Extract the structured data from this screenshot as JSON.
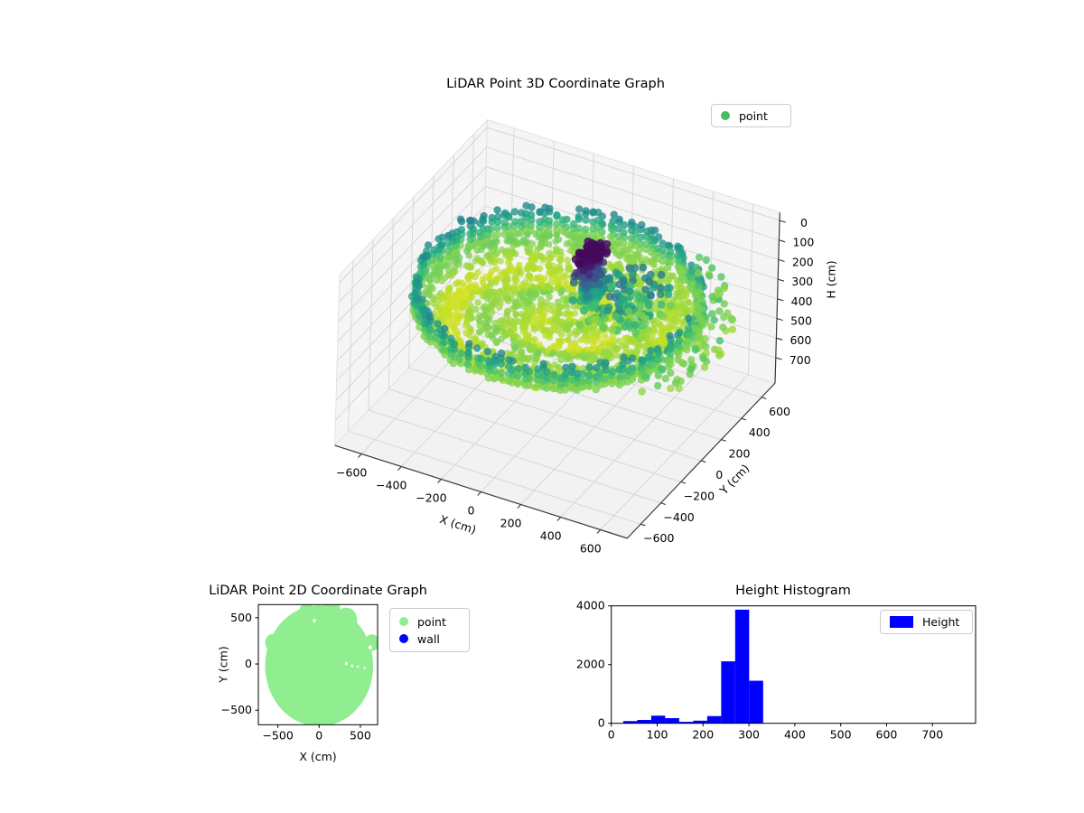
{
  "figure": {
    "background": "#ffffff"
  },
  "chart_data": [
    {
      "type": "scatter3d",
      "title": "LiDAR Point 3D Coordinate Graph",
      "xlabel": "X (cm)",
      "ylabel": "Y (cm)",
      "zlabel": "H (cm)",
      "legend": {
        "position": "upper right",
        "entries": [
          {
            "label": "point",
            "color": "#4abd62"
          }
        ]
      },
      "xticks": [
        -600,
        -400,
        -200,
        0,
        200,
        400,
        600
      ],
      "yticks": [
        -600,
        -400,
        -200,
        0,
        200,
        400,
        600
      ],
      "zticks": [
        0,
        100,
        200,
        300,
        400,
        500,
        600,
        700
      ],
      "xlim": [
        -734,
        734
      ],
      "ylim": [
        -734,
        734
      ],
      "zlim": [
        -40,
        830
      ],
      "zaxis_inverted": true,
      "colormap": "viridis",
      "color_by": "height_cm",
      "color_norm": [
        0,
        368
      ],
      "pane_color": "#f5f5f5",
      "grid_color": "#d7d7d7",
      "point_cloud": {
        "seed": 77,
        "floor_disk": {
          "center_xy": [
            0,
            0
          ],
          "radius": 620,
          "height_base": 318,
          "n_points": 2000
        },
        "rim_ring": {
          "radius_range": [
            622,
            660
          ],
          "n_columns": 150,
          "height_top": 182,
          "height_bottom": 300
        },
        "wall_cluster": {
          "center_xy": [
            118,
            70
          ],
          "sigma_xy": [
            50,
            85
          ],
          "height_range": [
            8,
            273
          ],
          "n_points": 240
        },
        "sparse_scatter": {
          "x_range": [
            140,
            430
          ],
          "y_range": [
            -80,
            300
          ],
          "height_range": [
            135,
            320
          ],
          "n_points": 130
        },
        "outer_scatter": {
          "radius_range": [
            668,
            788
          ],
          "theta_range": [
            -0.6,
            1.1
          ],
          "height_range": [
            258,
            320
          ],
          "n_points": 70
        }
      }
    },
    {
      "type": "scatter2d",
      "title": "LiDAR Point 2D Coordinate Graph",
      "xlabel": "X (cm)",
      "ylabel": "Y (cm)",
      "xticks": [
        -500,
        0,
        500
      ],
      "yticks": [
        -500,
        0,
        500
      ],
      "xlim": [
        -737,
        709
      ],
      "ylim": [
        -657,
        642
      ],
      "legend": {
        "position": "upper right outside",
        "entries": [
          {
            "label": "point",
            "color": "#90ee90"
          },
          {
            "label": "wall",
            "color": "#0000ff"
          }
        ]
      },
      "blob": {
        "color": "#90ee90",
        "main_circle": {
          "cx": 0,
          "cy": -20,
          "r": 655
        },
        "bumps": [
          {
            "cx": 150,
            "cy": 580,
            "r": 110
          },
          {
            "cx": 330,
            "cy": 480,
            "r": 130
          },
          {
            "cx": -150,
            "cy": 570,
            "r": 90
          },
          {
            "cx": 640,
            "cy": 230,
            "r": 90
          },
          {
            "cx": -560,
            "cy": 230,
            "r": 95
          }
        ],
        "holes": [
          {
            "cx": -58,
            "cy": 469,
            "r": 18
          },
          {
            "cx": 330,
            "cy": 5,
            "r": 16
          },
          {
            "cx": 400,
            "cy": -20,
            "r": 14
          },
          {
            "cx": 470,
            "cy": -30,
            "r": 12
          },
          {
            "cx": 550,
            "cy": -45,
            "r": 12
          },
          {
            "cx": 620,
            "cy": 180,
            "r": 22
          }
        ]
      }
    },
    {
      "type": "histogram",
      "title": "Height Histogram",
      "series_label": "Height",
      "bar_color": "#0000ff",
      "bin_edges": [
        26,
        56.5,
        87,
        117.5,
        148,
        178.5,
        209,
        239.5,
        270,
        300.5,
        331
      ],
      "counts": [
        75,
        115,
        260,
        175,
        50,
        90,
        245,
        2110,
        3870,
        1450
      ],
      "xticks": [
        0,
        100,
        200,
        300,
        400,
        500,
        600,
        700
      ],
      "yticks": [
        0,
        2000,
        4000
      ],
      "xlim": [
        0,
        794
      ],
      "ylim": [
        0,
        4000
      ],
      "legend": {
        "position": "upper right",
        "entries": [
          {
            "label": "Height",
            "color": "#0000ff"
          }
        ]
      }
    }
  ]
}
